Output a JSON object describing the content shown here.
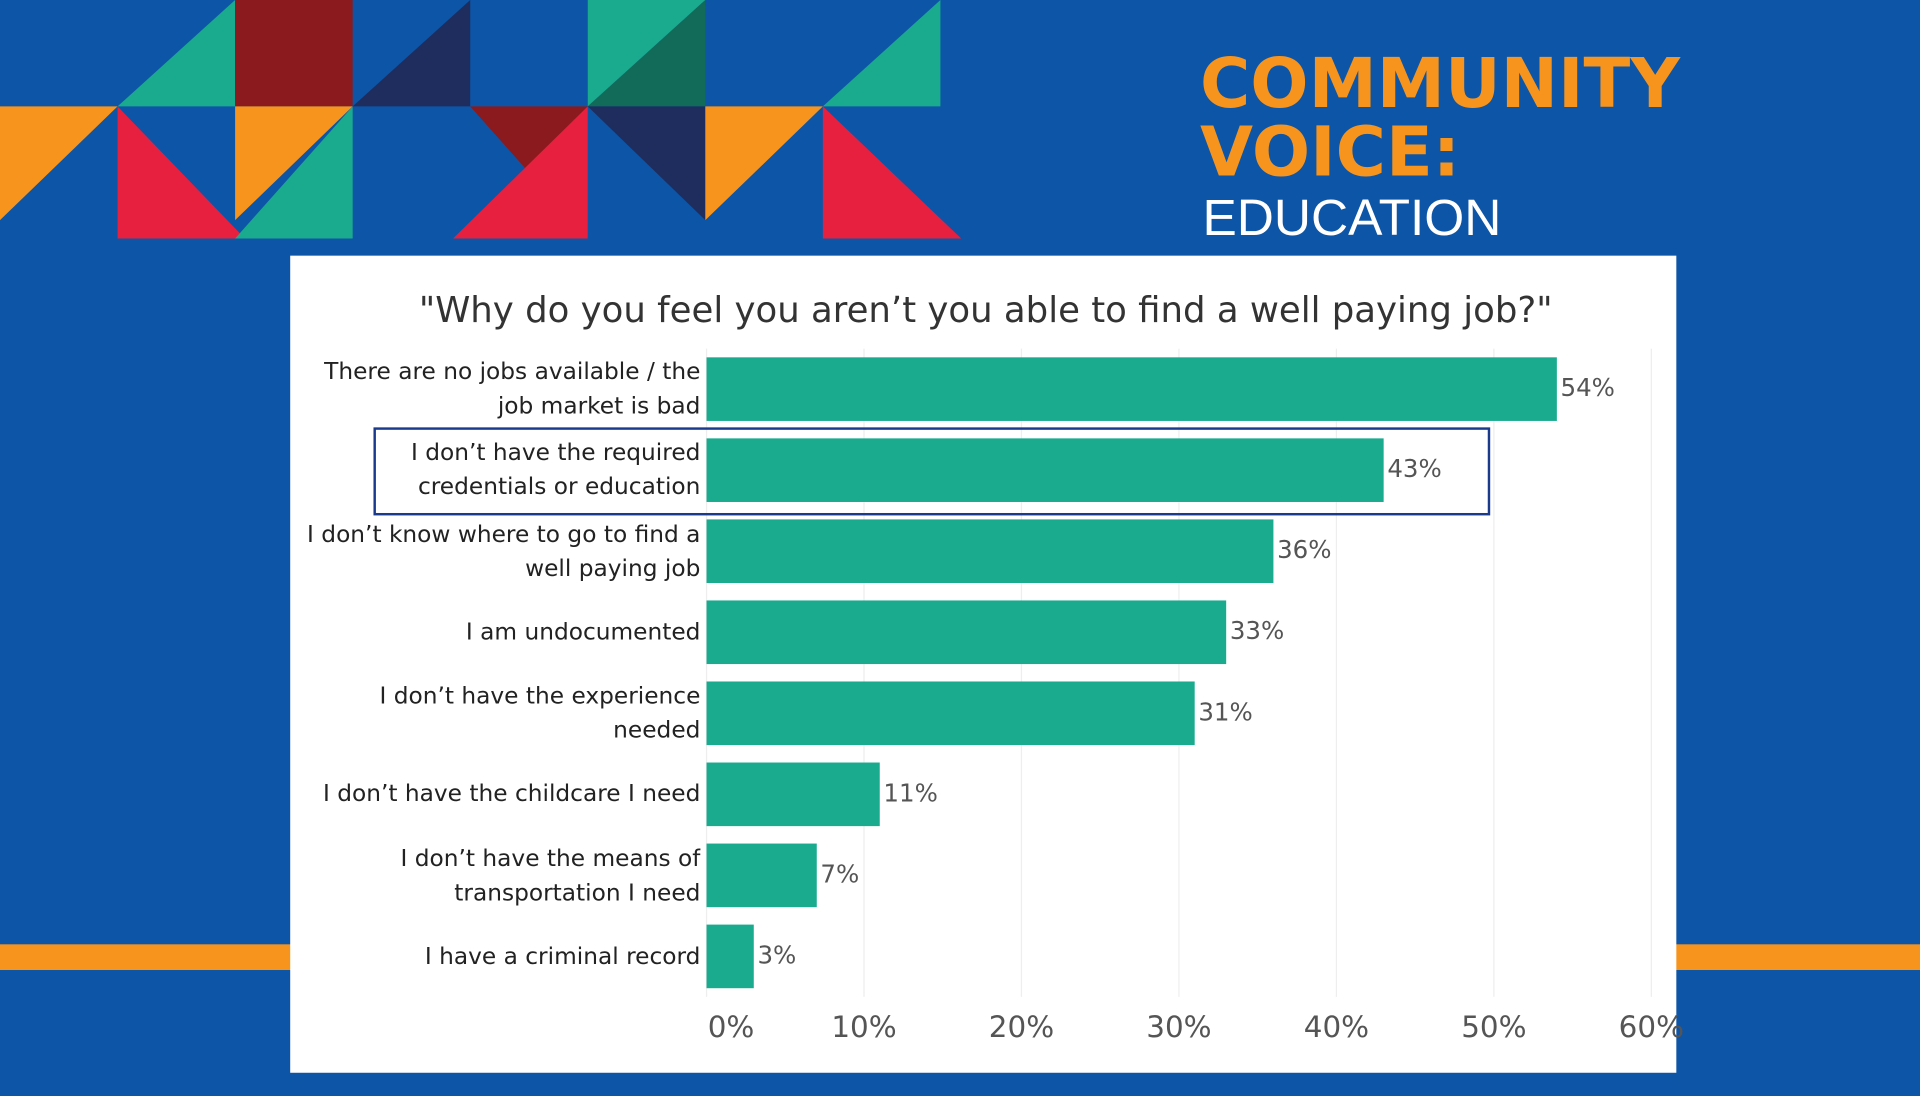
{
  "header": {
    "line1": "COMMUNITY",
    "line2": "VOICE:",
    "line3": "EDUCATION"
  },
  "chart_data": {
    "type": "bar",
    "orientation": "horizontal",
    "title": "\"Why do you feel you aren’t you able to find a well paying job?\"",
    "categories": [
      "There are no jobs available / the job market is bad",
      "I don’t have the required credentials or education",
      "I don’t know where to go to find a well paying job",
      "I am undocumented",
      "I don’t have the experience needed",
      "I don’t have the childcare I need",
      "I don’t have the means of transportation I need",
      "I have a criminal record"
    ],
    "values": [
      54,
      43,
      36,
      33,
      31,
      11,
      7,
      3
    ],
    "value_labels": [
      "54%",
      "43%",
      "36%",
      "33%",
      "31%",
      "11%",
      "7%",
      "3%"
    ],
    "color": "#1aab8f",
    "xlim": [
      0,
      60
    ],
    "xticks": [
      {
        "value": 0,
        "label": "0%"
      },
      {
        "value": 10,
        "label": "10%"
      },
      {
        "value": 20,
        "label": "20%"
      },
      {
        "value": 30,
        "label": "30%"
      },
      {
        "value": 40,
        "label": "40%"
      },
      {
        "value": 50,
        "label": "50%"
      },
      {
        "value": 60,
        "label": "60%"
      }
    ],
    "grid": true,
    "highlight_index": 1
  }
}
